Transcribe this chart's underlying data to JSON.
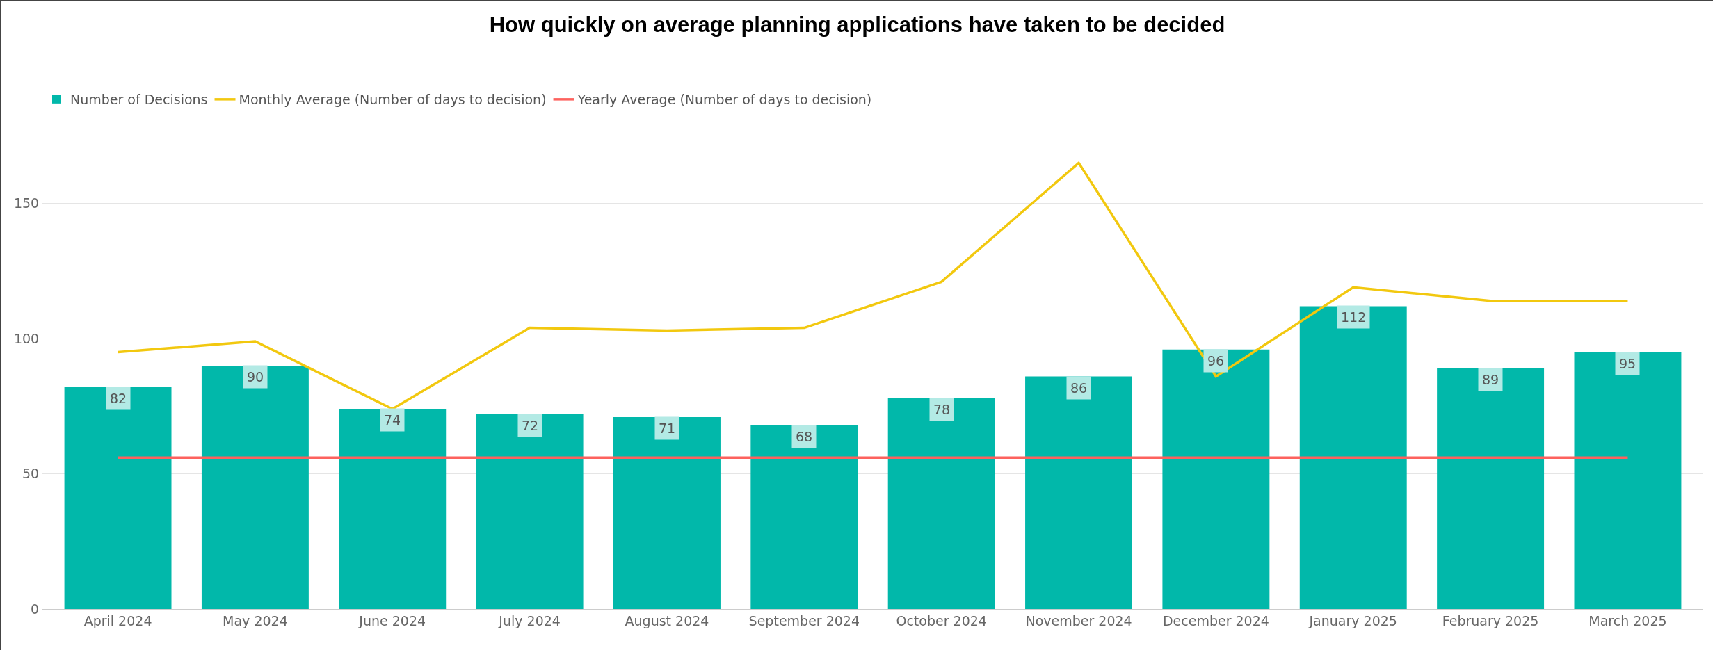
{
  "chart_data": {
    "type": "bar",
    "title": "How quickly on average planning applications have taken to be decided",
    "categories": [
      "April 2024",
      "May 2024",
      "June 2024",
      "July 2024",
      "August 2024",
      "September 2024",
      "October 2024",
      "November 2024",
      "December 2024",
      "January 2025",
      "February 2025",
      "March 2025"
    ],
    "series": [
      {
        "name": "Number of Decisions",
        "color": "#01b8aa",
        "values": [
          82,
          90,
          74,
          72,
          71,
          68,
          78,
          86,
          96,
          112,
          89,
          95
        ],
        "value_labels": [
          "82",
          "90",
          "74",
          "72",
          "71",
          "68",
          "78",
          "86",
          "96",
          "112",
          "89",
          "95"
        ]
      },
      {
        "name": "Monthly Average (Number of days to decision)",
        "type": "line",
        "color": "#f2c80f",
        "values": [
          95,
          99,
          74,
          104,
          103,
          104,
          121,
          165,
          86,
          119,
          114,
          114
        ]
      },
      {
        "name": "Yearly Average (Number of days to decision)",
        "type": "line",
        "color": "#fd625e",
        "values": [
          56,
          56,
          56,
          56,
          56,
          56,
          56,
          56,
          56,
          56,
          56,
          56
        ]
      }
    ],
    "ylim": [
      0,
      180
    ],
    "yticks": [
      0,
      50,
      100,
      150
    ],
    "grid": "y",
    "legend": "top left",
    "marker": "none",
    "line_style": "solid"
  }
}
